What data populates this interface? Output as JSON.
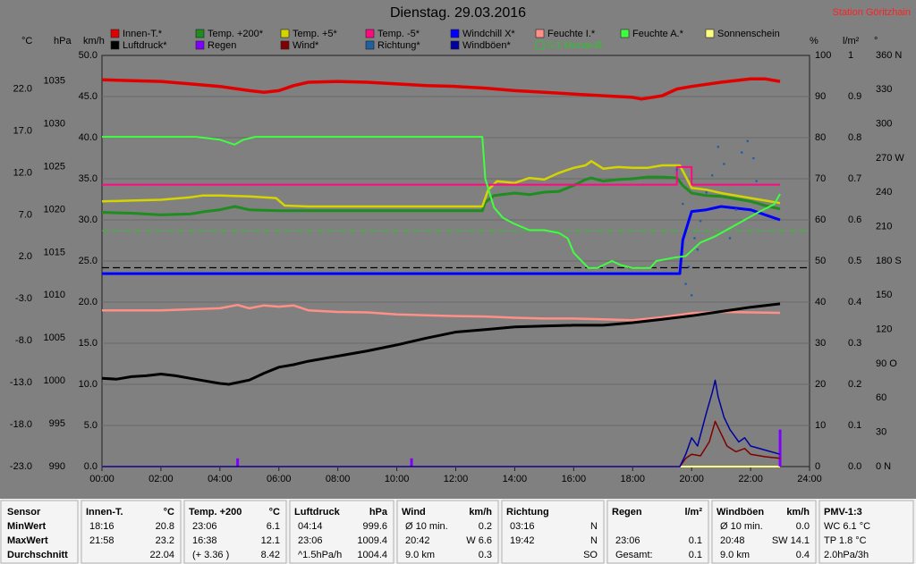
{
  "chart_data": {
    "type": "line",
    "title": "Dienstag. 29.03.2016",
    "annotation": "Station Göritzhain",
    "xlim": [
      0,
      24
    ],
    "xticks": [
      {
        "value": 0,
        "label": "00:00"
      },
      {
        "value": 2,
        "label": "02:00"
      },
      {
        "value": 4,
        "label": "04:00"
      },
      {
        "value": 6,
        "label": "06:00"
      },
      {
        "value": 8,
        "label": "08:00"
      },
      {
        "value": 10,
        "label": "10:00"
      },
      {
        "value": 12,
        "label": "12:00"
      },
      {
        "value": 14,
        "label": "14:00"
      },
      {
        "value": 16,
        "label": "16:00"
      },
      {
        "value": 18,
        "label": "18:00"
      },
      {
        "value": 20,
        "label": "20:00"
      },
      {
        "value": 22,
        "label": "22:00"
      },
      {
        "value": 24,
        "label": "24:00"
      }
    ],
    "grid": true,
    "grid_axis": "kmh",
    "axes": {
      "temp": {
        "label": "°C",
        "lim": [
          -23,
          26
        ],
        "ticks": [
          {
            "value": -23,
            "label": "-23.0"
          },
          {
            "value": -18,
            "label": "-18.0"
          },
          {
            "value": -13,
            "label": "-13.0"
          },
          {
            "value": -8,
            "label": "-8.0"
          },
          {
            "value": -3,
            "label": "-3.0"
          },
          {
            "value": 2,
            "label": "2.0"
          },
          {
            "value": 7,
            "label": "7.0"
          },
          {
            "value": 12,
            "label": "12.0"
          },
          {
            "value": 17,
            "label": "17.0"
          },
          {
            "value": 22,
            "label": "22.0"
          }
        ]
      },
      "hpa": {
        "label": "hPa",
        "lim": [
          990,
          1038
        ],
        "ticks": [
          990,
          995,
          1000,
          1005,
          1010,
          1015,
          1020,
          1025,
          1030,
          1035
        ]
      },
      "kmh": {
        "label": "km/h",
        "lim": [
          0,
          50
        ],
        "ticks": [
          {
            "value": 0,
            "label": "0.0"
          },
          {
            "value": 5,
            "label": "5.0"
          },
          {
            "value": 10,
            "label": "10.0"
          },
          {
            "value": 15,
            "label": "15.0"
          },
          {
            "value": 20,
            "label": "20.0"
          },
          {
            "value": 25,
            "label": "25.0"
          },
          {
            "value": 30,
            "label": "30.0"
          },
          {
            "value": 35,
            "label": "35.0"
          },
          {
            "value": 40,
            "label": "40.0"
          },
          {
            "value": 45,
            "label": "45.0"
          },
          {
            "value": 50,
            "label": "50.0"
          }
        ]
      },
      "pct": {
        "label": "%",
        "lim": [
          0,
          100
        ],
        "ticks": [
          0,
          10,
          20,
          30,
          40,
          50,
          60,
          70,
          80,
          90,
          100
        ]
      },
      "lm2": {
        "label": "l/m²",
        "lim": [
          0,
          1
        ],
        "ticks": [
          {
            "value": 0,
            "label": "0.0"
          },
          0.1,
          0.2,
          0.3,
          0.4,
          0.5,
          0.6,
          0.7,
          0.8,
          0.9,
          1
        ]
      },
      "deg": {
        "label": "°",
        "lim": [
          0,
          360
        ],
        "ticks": [
          {
            "value": 0,
            "label": "0 N"
          },
          30,
          60,
          {
            "value": 90,
            "label": "90 O"
          },
          120,
          150,
          {
            "value": 180,
            "label": "180 S"
          },
          210,
          240,
          {
            "value": 270,
            "label": "270 W"
          },
          300,
          330,
          {
            "value": 360,
            "label": "360 N"
          }
        ]
      }
    },
    "series": [
      {
        "name": "Innen-T.*",
        "color": "#e00000",
        "axis": "temp",
        "width": 3.5,
        "x": [
          0,
          1,
          2,
          3,
          4,
          5,
          5.5,
          6,
          6.5,
          7,
          8,
          9,
          10,
          11,
          12,
          13,
          14,
          15,
          16,
          17,
          18,
          18.3,
          19,
          19.5,
          20,
          21,
          22,
          22.5,
          23
        ],
        "values": [
          23.1,
          23.0,
          22.9,
          22.6,
          22.3,
          21.8,
          21.6,
          21.8,
          22.4,
          22.8,
          22.9,
          22.8,
          22.6,
          22.4,
          22.3,
          22.1,
          21.8,
          21.6,
          21.4,
          21.2,
          21.0,
          20.8,
          21.2,
          22.0,
          22.3,
          22.8,
          23.2,
          23.2,
          22.9
        ]
      },
      {
        "name": "Temp. +200*",
        "color": "#1e8c1e",
        "axis": "temp",
        "width": 3,
        "x": [
          0,
          1,
          2,
          3,
          3.5,
          4,
          4.5,
          5,
          6,
          7,
          8,
          9,
          10,
          11,
          12,
          12.9,
          13,
          13.3,
          14,
          14.5,
          15,
          15.5,
          16,
          16.4,
          16.6,
          17,
          17.5,
          18,
          18.5,
          19,
          19.5,
          19.7,
          20,
          20.5,
          21,
          21.5,
          22,
          22.5,
          23
        ],
        "values": [
          7.3,
          7.2,
          7.0,
          7.1,
          7.4,
          7.6,
          8.0,
          7.6,
          7.5,
          7.5,
          7.5,
          7.5,
          7.5,
          7.5,
          7.5,
          7.5,
          8.5,
          9.3,
          9.6,
          9.4,
          9.7,
          9.8,
          10.5,
          11.2,
          11.4,
          11.0,
          11.2,
          11.3,
          11.5,
          11.5,
          11.4,
          10.5,
          9.6,
          9.3,
          9.2,
          8.9,
          8.6,
          8.1,
          7.7
        ]
      },
      {
        "name": "Temp. +5*",
        "color": "#d4d400",
        "axis": "temp",
        "width": 2.5,
        "x": [
          0,
          1,
          2,
          3,
          3.4,
          4,
          5,
          5.9,
          6.2,
          7,
          8,
          9,
          10,
          11,
          12,
          12.9,
          13.1,
          13.4,
          14,
          14.5,
          15,
          15.5,
          16,
          16.4,
          16.6,
          17,
          17.5,
          18,
          18.5,
          19,
          19.6,
          20,
          20.5,
          21,
          22,
          23
        ],
        "values": [
          8.6,
          8.7,
          8.8,
          9.1,
          9.3,
          9.3,
          9.2,
          9.0,
          8.1,
          8.0,
          8.0,
          8.0,
          8.0,
          8.0,
          8.0,
          8.0,
          10.0,
          11.0,
          10.8,
          11.4,
          11.2,
          12.0,
          12.6,
          12.9,
          13.4,
          12.5,
          12.7,
          12.6,
          12.6,
          12.9,
          12.9,
          10.2,
          10.0,
          9.6,
          9.0,
          8.4
        ]
      },
      {
        "name": "Temp. -5*",
        "color": "#ff0880",
        "axis": "temp",
        "width": 2,
        "x": [
          0,
          19.5,
          19.5,
          20,
          20,
          23
        ],
        "values": [
          10.6,
          10.6,
          12.7,
          12.7,
          10.6,
          10.6
        ]
      },
      {
        "name": "Windchill X*",
        "color": "#0000ff",
        "axis": "temp",
        "width": 3,
        "x": [
          0,
          19.6,
          19.7,
          20,
          20.5,
          21,
          21.5,
          22,
          22.5,
          23
        ],
        "values": [
          0.0,
          0.0,
          4.0,
          7.4,
          7.6,
          8.0,
          7.8,
          7.6,
          7.0,
          6.4
        ]
      },
      {
        "name": "Feuchte I.*",
        "color": "#ff9088",
        "axis": "pct",
        "width": 2.5,
        "x": [
          0,
          2,
          4,
          4.6,
          5,
          5.5,
          6,
          6.5,
          7,
          8,
          9,
          10,
          11,
          12,
          13,
          14,
          15,
          16,
          17,
          18,
          19,
          20,
          21,
          22,
          23
        ],
        "values": [
          38,
          38,
          38.5,
          39.3,
          38.5,
          39.2,
          38.9,
          39.2,
          38,
          37.6,
          37.5,
          37,
          36.8,
          36.6,
          36.5,
          36.2,
          36,
          36,
          35.8,
          35.6,
          36.3,
          37.3,
          37.6,
          37.5,
          37.4
        ]
      },
      {
        "name": "Feuchte A.*",
        "color": "#40ff40",
        "axis": "pct",
        "width": 2,
        "x": [
          0,
          3.2,
          4,
          4.5,
          4.8,
          5.2,
          6,
          12.9,
          13.0,
          13.3,
          13.6,
          14,
          14.5,
          15,
          15.5,
          15.8,
          16,
          16.5,
          16.8,
          17.3,
          17.6,
          18,
          18.6,
          18.8,
          19.4,
          19.8,
          20.3,
          20.8,
          21.3,
          21.8,
          22.3,
          22.8,
          23
        ],
        "values": [
          80.2,
          80.2,
          79.5,
          78.3,
          79.5,
          80.2,
          80.2,
          80.2,
          70,
          63,
          60.5,
          59,
          57.5,
          57.5,
          56.8,
          55.5,
          52,
          48.3,
          48.3,
          50,
          49,
          48.3,
          48.3,
          50,
          50.8,
          51.2,
          54.5,
          56,
          58,
          60,
          62,
          63.8,
          66.3
        ]
      },
      {
        "name": "Sonnenschein",
        "color": "#ffff80",
        "axis": "pct",
        "width": 2,
        "x": [
          0,
          23
        ],
        "values": [
          0,
          0
        ]
      },
      {
        "name": "Luftdruck*",
        "color": "#000000",
        "axis": "hpa",
        "width": 3,
        "x": [
          0,
          0.5,
          1,
          1.5,
          2,
          2.5,
          3,
          3.5,
          4,
          4.3,
          5,
          5.5,
          6,
          6.5,
          7,
          8,
          9,
          10,
          11,
          12,
          13,
          14,
          15,
          16,
          17,
          18,
          19,
          20,
          21,
          22,
          23
        ],
        "values": [
          1000.3,
          1000.2,
          1000.5,
          1000.6,
          1000.8,
          1000.6,
          1000.3,
          1000.0,
          999.7,
          999.6,
          1000.1,
          1000.9,
          1001.6,
          1001.9,
          1002.3,
          1002.9,
          1003.5,
          1004.2,
          1005.0,
          1005.7,
          1006.0,
          1006.3,
          1006.4,
          1006.5,
          1006.5,
          1006.8,
          1007.2,
          1007.6,
          1008.1,
          1008.6,
          1009.0
        ]
      },
      {
        "name": "Regen",
        "color": "#8000ff",
        "axis": "lm2",
        "style": "bar",
        "x": [
          4.6,
          10.5,
          23.0
        ],
        "values": [
          0.02,
          0.02,
          0.09
        ]
      },
      {
        "name": "Wind*",
        "color": "#800000",
        "axis": "kmh",
        "width": 1.5,
        "x": [
          0,
          19.6,
          19.8,
          20,
          20.3,
          20.6,
          20.8,
          21,
          21.2,
          21.5,
          21.8,
          22,
          22.5,
          23
        ],
        "values": [
          0,
          0,
          1.0,
          1.5,
          1.3,
          3.0,
          5.5,
          4.0,
          2.5,
          1.8,
          2.2,
          1.5,
          1.2,
          1.0
        ]
      },
      {
        "name": "Richtung*",
        "color": "#2060a0",
        "axis": "deg",
        "style": "scatter",
        "x": [
          19.5,
          19.7,
          19.8,
          20,
          20.1,
          20.3,
          20.5,
          20.7,
          20.9,
          21.1,
          21.3,
          21.5,
          21.7,
          21.9,
          22.1,
          22.2,
          20.2,
          19.9
        ],
        "values": [
          260,
          230,
          160,
          150,
          200,
          215,
          240,
          255,
          280,
          265,
          200,
          225,
          275,
          285,
          270,
          250,
          190,
          175
        ]
      },
      {
        "name": "Windböen*",
        "color": "#0000a0",
        "axis": "kmh",
        "width": 1.5,
        "x": [
          0,
          19.6,
          19.8,
          20,
          20.2,
          20.5,
          20.7,
          20.8,
          20.9,
          21.1,
          21.3,
          21.6,
          21.8,
          22,
          22.5,
          23
        ],
        "values": [
          0,
          0,
          1.5,
          3.5,
          2.5,
          6.5,
          9,
          10.5,
          8.5,
          6,
          4.5,
          3,
          3.5,
          2.5,
          2.0,
          1.5
        ]
      }
    ],
    "reference_lines": [
      {
        "name": "5.1 Monat-Ø",
        "value": 5.1,
        "axis": "temp",
        "color": "#30c030"
      },
      {
        "value": 0.7,
        "axis": "temp",
        "color": "#000000"
      }
    ]
  },
  "table": {
    "sensor": {
      "header": "Sensor",
      "rows": [
        "MinWert",
        "MaxWert",
        "Durchschnitt"
      ]
    },
    "columns": [
      {
        "header": "Innen-T.",
        "unit": "°C",
        "rows": [
          [
            "18:16",
            "20.8"
          ],
          [
            "21:58",
            "23.2"
          ],
          [
            "22.04"
          ]
        ]
      },
      {
        "header": "Temp. +200",
        "unit": "°C",
        "rows": [
          [
            "23:06",
            "6.1"
          ],
          [
            "16:38",
            "12.1"
          ],
          [
            "(+ 3.36 )",
            "8.42"
          ]
        ]
      },
      {
        "header": "Luftdruck",
        "unit": "hPa",
        "rows": [
          [
            "04:14",
            "999.6"
          ],
          [
            "23:06",
            "1009.4"
          ],
          [
            "^1.5hPa/h",
            "1004.4"
          ]
        ]
      },
      {
        "header": "Wind",
        "unit": "km/h",
        "rows": [
          [
            "Ø 10 min.",
            "0.2"
          ],
          [
            "20:42",
            "W 6.6"
          ],
          [
            "9.0 km",
            "0.3"
          ]
        ]
      },
      {
        "header": "Richtung",
        "rows": [
          [
            "03:16",
            "N"
          ],
          [
            "19:42",
            "N"
          ],
          [
            "SO"
          ]
        ]
      },
      {
        "header": "Regen",
        "unit": "l/m²",
        "rows": [
          [],
          [
            "23:06",
            "0.1"
          ],
          [
            "Gesamt:",
            "0.1"
          ]
        ]
      },
      {
        "header": "Windböen",
        "unit": "km/h",
        "rows": [
          [
            "Ø 10 min.",
            "0.0"
          ],
          [
            "20:48",
            "SW 14.1"
          ],
          [
            "9.0 km",
            "0.4"
          ]
        ]
      },
      {
        "header": "PMV-1:3",
        "align": "left",
        "rows": [
          [
            "WC 6.1 °C"
          ],
          [
            "TP 1.8 °C"
          ],
          [
            "2.0hPa/3h"
          ]
        ]
      }
    ]
  }
}
